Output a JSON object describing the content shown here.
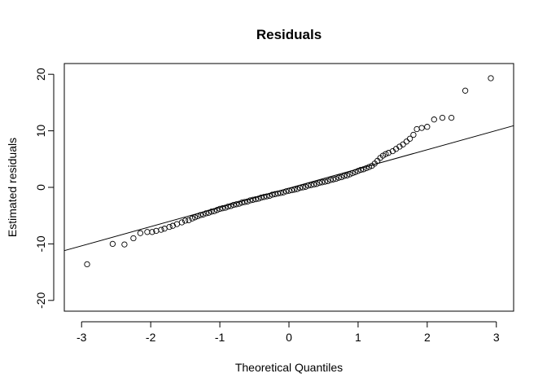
{
  "chart_data": {
    "type": "scatter",
    "title": "Residuals",
    "xlabel": "Theoretical Quantiles",
    "ylabel": "Estimated residuals",
    "xlim": [
      -3.25,
      3.25
    ],
    "ylim": [
      -21.9,
      21.9
    ],
    "xticks": [
      -3,
      -2,
      -1,
      0,
      1,
      2,
      3
    ],
    "yticks": [
      -20,
      -10,
      0,
      10,
      20
    ],
    "grid": false,
    "marker": "open-circle",
    "reference_line": {
      "intercept": -0.15,
      "slope": 3.4
    },
    "points": [
      [
        -2.92,
        -13.6
      ],
      [
        -2.55,
        -10.0
      ],
      [
        -2.38,
        -10.1
      ],
      [
        -2.25,
        -9.0
      ],
      [
        -2.15,
        -8.1
      ],
      [
        -2.05,
        -7.9
      ],
      [
        -1.98,
        -7.9
      ],
      [
        -1.92,
        -7.7
      ],
      [
        -1.85,
        -7.5
      ],
      [
        -1.8,
        -7.3
      ],
      [
        -1.73,
        -7.0
      ],
      [
        -1.68,
        -6.8
      ],
      [
        -1.62,
        -6.5
      ],
      [
        -1.55,
        -6.2
      ],
      [
        -1.5,
        -5.9
      ],
      [
        -1.45,
        -5.8
      ],
      [
        -1.4,
        -5.5
      ],
      [
        -1.36,
        -5.3
      ],
      [
        -1.32,
        -5.1
      ],
      [
        -1.28,
        -4.9
      ],
      [
        -1.24,
        -4.8
      ],
      [
        -1.2,
        -4.6
      ],
      [
        -1.16,
        -4.5
      ],
      [
        -1.12,
        -4.3
      ],
      [
        -1.08,
        -4.2
      ],
      [
        -1.04,
        -4.0
      ],
      [
        -1.0,
        -3.8
      ],
      [
        -0.96,
        -3.7
      ],
      [
        -0.92,
        -3.6
      ],
      [
        -0.88,
        -3.4
      ],
      [
        -0.84,
        -3.3
      ],
      [
        -0.8,
        -3.1
      ],
      [
        -0.76,
        -3.0
      ],
      [
        -0.72,
        -2.9
      ],
      [
        -0.68,
        -2.7
      ],
      [
        -0.64,
        -2.6
      ],
      [
        -0.6,
        -2.5
      ],
      [
        -0.56,
        -2.3
      ],
      [
        -0.52,
        -2.2
      ],
      [
        -0.48,
        -2.1
      ],
      [
        -0.44,
        -2.0
      ],
      [
        -0.4,
        -1.8
      ],
      [
        -0.36,
        -1.7
      ],
      [
        -0.32,
        -1.6
      ],
      [
        -0.28,
        -1.5
      ],
      [
        -0.24,
        -1.3
      ],
      [
        -0.2,
        -1.2
      ],
      [
        -0.16,
        -1.1
      ],
      [
        -0.12,
        -1.0
      ],
      [
        -0.08,
        -0.9
      ],
      [
        -0.04,
        -0.7
      ],
      [
        0.0,
        -0.6
      ],
      [
        0.04,
        -0.5
      ],
      [
        0.08,
        -0.4
      ],
      [
        0.12,
        -0.3
      ],
      [
        0.16,
        -0.1
      ],
      [
        0.2,
        0.0
      ],
      [
        0.24,
        0.1
      ],
      [
        0.28,
        0.3
      ],
      [
        0.32,
        0.4
      ],
      [
        0.36,
        0.5
      ],
      [
        0.4,
        0.6
      ],
      [
        0.44,
        0.8
      ],
      [
        0.48,
        0.9
      ],
      [
        0.52,
        1.0
      ],
      [
        0.56,
        1.1
      ],
      [
        0.6,
        1.3
      ],
      [
        0.64,
        1.4
      ],
      [
        0.68,
        1.5
      ],
      [
        0.72,
        1.7
      ],
      [
        0.76,
        1.8
      ],
      [
        0.8,
        2.0
      ],
      [
        0.84,
        2.1
      ],
      [
        0.88,
        2.3
      ],
      [
        0.92,
        2.5
      ],
      [
        0.96,
        2.7
      ],
      [
        1.0,
        2.9
      ],
      [
        1.04,
        3.1
      ],
      [
        1.08,
        3.2
      ],
      [
        1.12,
        3.4
      ],
      [
        1.16,
        3.6
      ],
      [
        1.2,
        3.8
      ],
      [
        1.24,
        4.2
      ],
      [
        1.28,
        4.7
      ],
      [
        1.32,
        5.2
      ],
      [
        1.36,
        5.6
      ],
      [
        1.4,
        5.9
      ],
      [
        1.44,
        6.1
      ],
      [
        1.5,
        6.4
      ],
      [
        1.55,
        6.8
      ],
      [
        1.6,
        7.2
      ],
      [
        1.65,
        7.6
      ],
      [
        1.7,
        8.1
      ],
      [
        1.75,
        8.6
      ],
      [
        1.8,
        9.3
      ],
      [
        1.85,
        10.3
      ],
      [
        1.92,
        10.5
      ],
      [
        2.0,
        10.7
      ],
      [
        2.1,
        12.0
      ],
      [
        2.22,
        12.3
      ],
      [
        2.35,
        12.3
      ],
      [
        2.55,
        17.1
      ],
      [
        2.92,
        19.3
      ]
    ]
  }
}
